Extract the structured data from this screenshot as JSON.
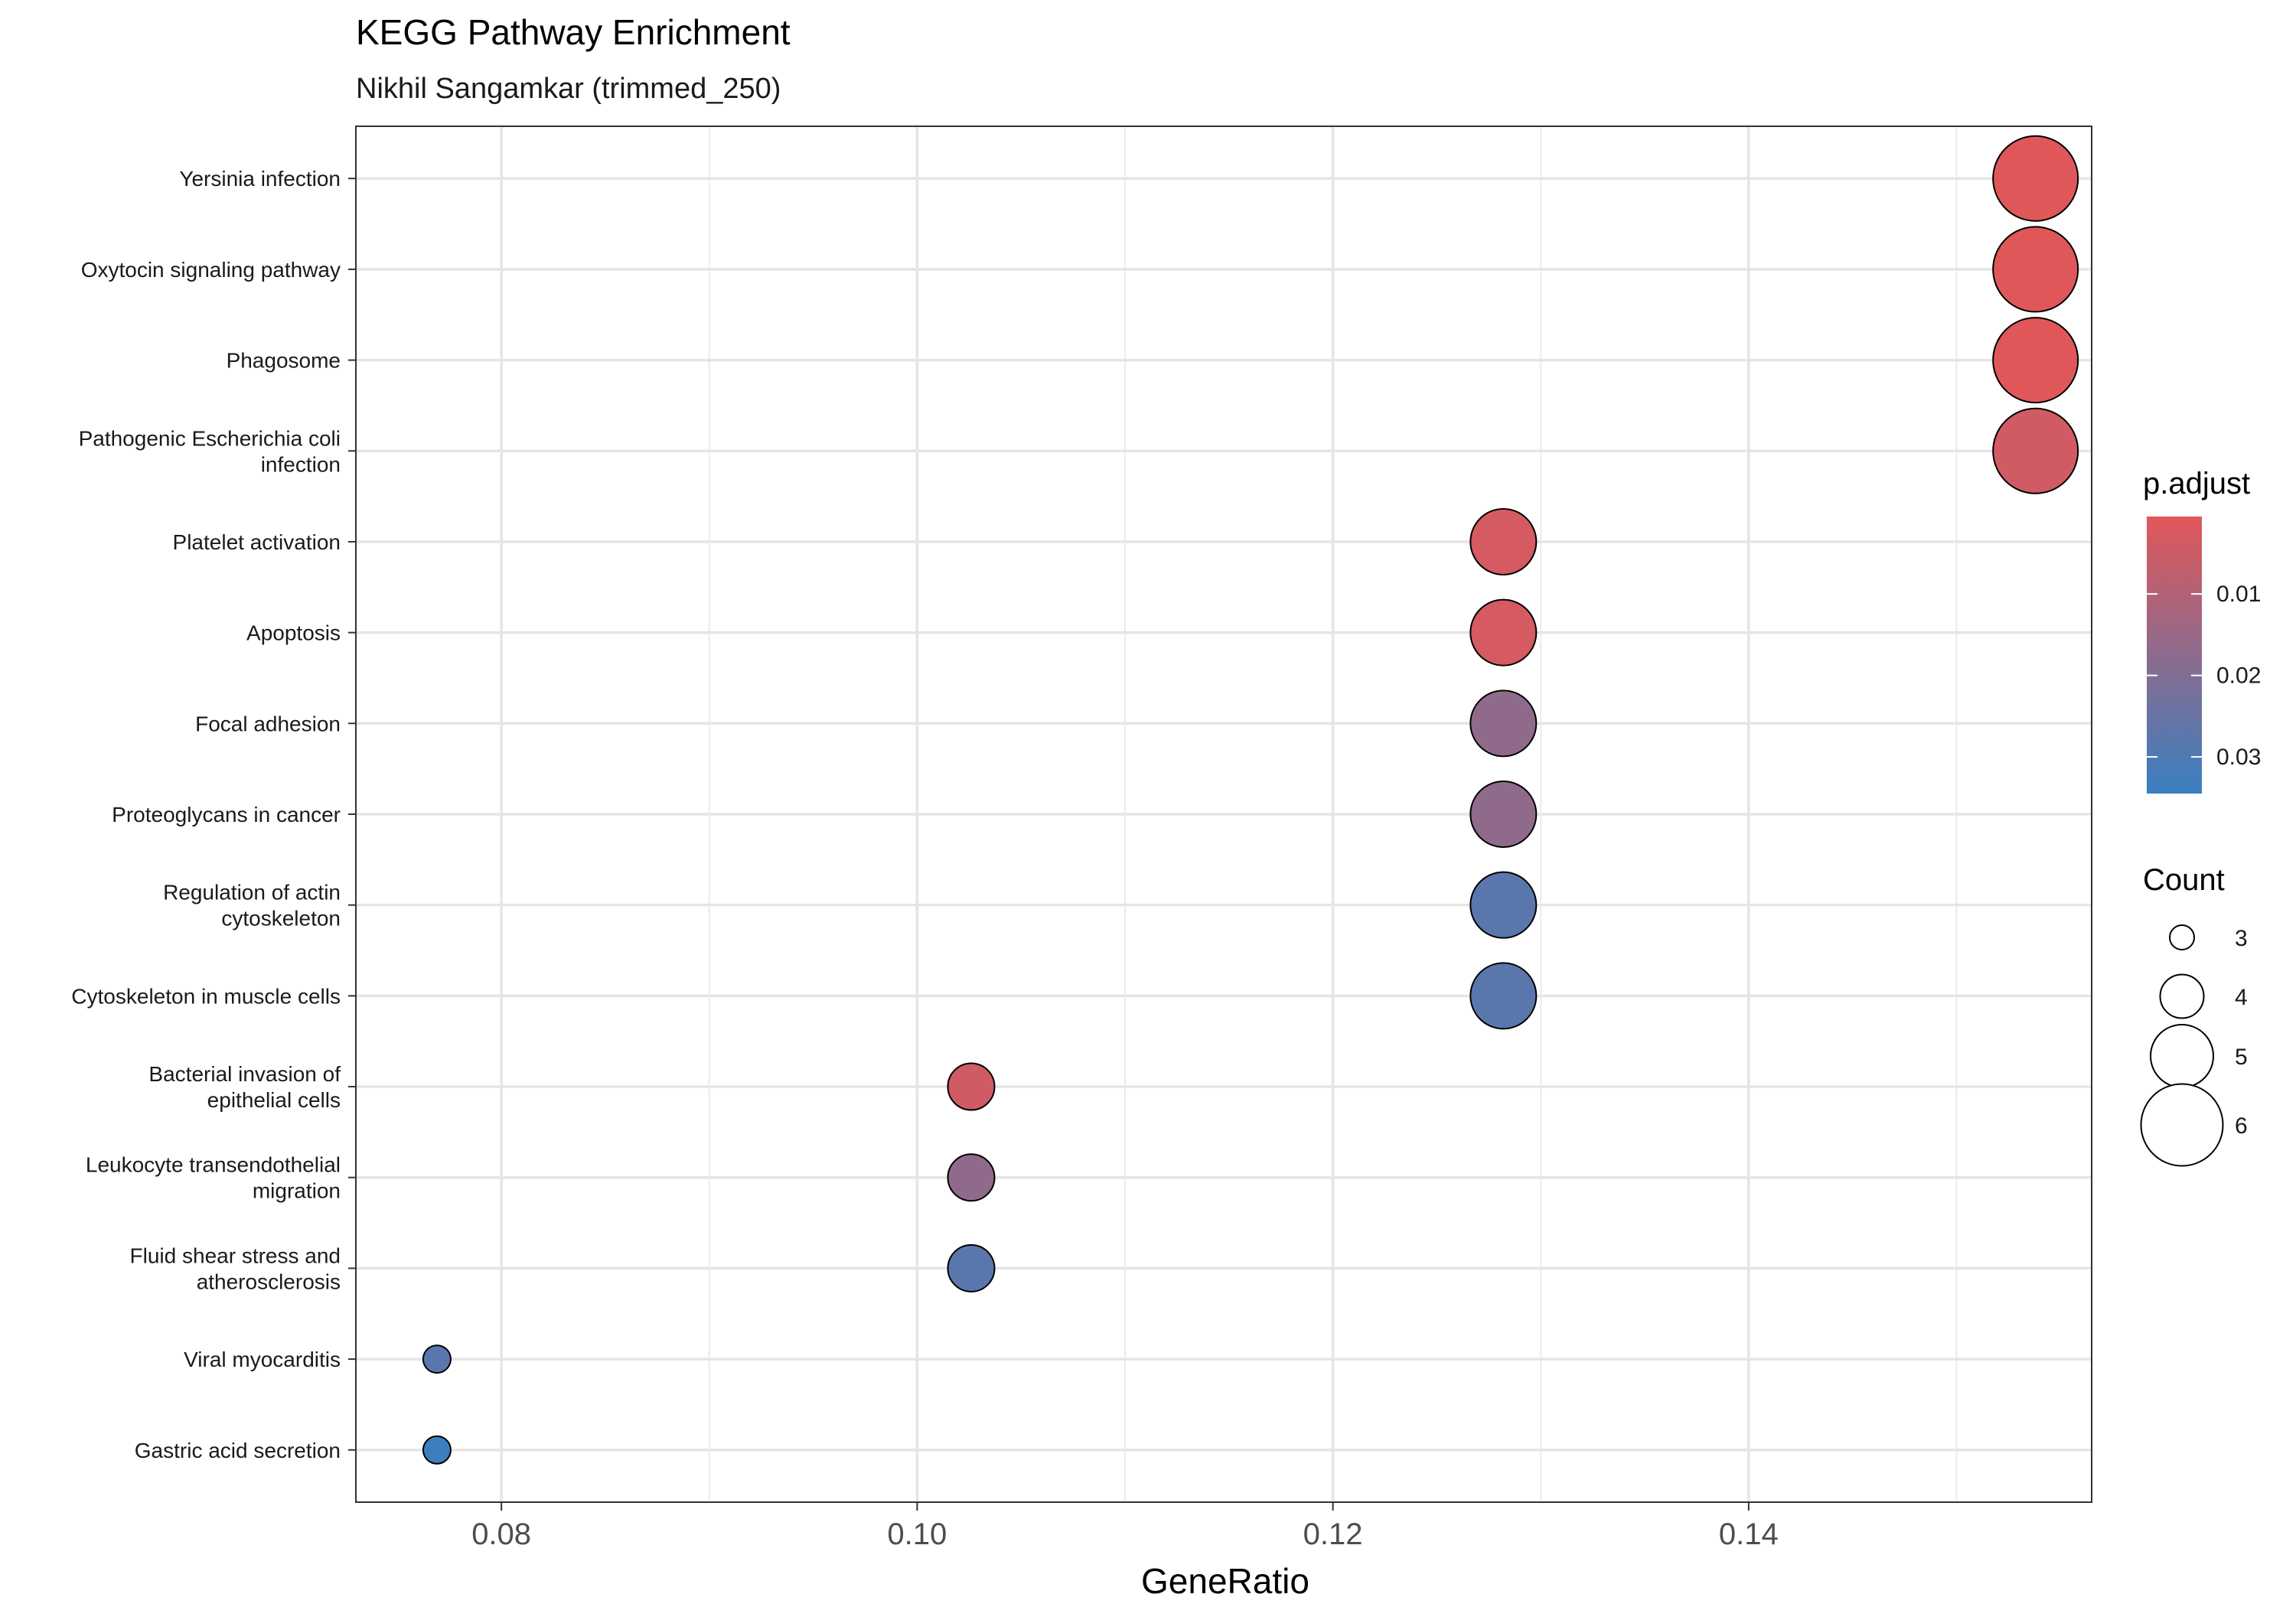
{
  "chart_data": {
    "type": "scatter",
    "title": "KEGG Pathway Enrichment",
    "subtitle": "Nikhil Sangamkar (trimmed_250)",
    "xlabel": "GeneRatio",
    "ylabel": "",
    "xlim": [
      0.073,
      0.1565
    ],
    "xticks": [
      0.08,
      0.1,
      0.12,
      0.14
    ],
    "xtick_labels": [
      "0.08",
      "0.10",
      "0.12",
      "0.14"
    ],
    "grid": true,
    "color_legend": {
      "title": "p.adjust",
      "low_color": "#e15759",
      "high_color": "#3a7fc1",
      "range": [
        0.0005,
        0.0345
      ],
      "ticks": [
        0.01,
        0.02,
        0.03
      ],
      "tick_labels": [
        "0.01",
        "0.02",
        "0.03"
      ],
      "placement": "right"
    },
    "size_legend": {
      "title": "Count",
      "values": [
        3,
        4,
        5,
        6
      ],
      "labels": [
        "3",
        "4",
        "5",
        "6"
      ],
      "placement": "right"
    },
    "points": [
      {
        "label": [
          "Yersinia infection"
        ],
        "x": 0.1538,
        "count": 6,
        "p_adjust": 0.0008
      },
      {
        "label": [
          "Oxytocin signaling pathway"
        ],
        "x": 0.1538,
        "count": 6,
        "p_adjust": 0.0008
      },
      {
        "label": [
          "Phagosome"
        ],
        "x": 0.1538,
        "count": 6,
        "p_adjust": 0.0008
      },
      {
        "label": [
          "Pathogenic Escherichia coli",
          "infection"
        ],
        "x": 0.1538,
        "count": 6,
        "p_adjust": 0.004
      },
      {
        "label": [
          "Platelet activation"
        ],
        "x": 0.1282,
        "count": 5,
        "p_adjust": 0.003
      },
      {
        "label": [
          "Apoptosis"
        ],
        "x": 0.1282,
        "count": 5,
        "p_adjust": 0.003
      },
      {
        "label": [
          "Focal adhesion"
        ],
        "x": 0.1282,
        "count": 5,
        "p_adjust": 0.017
      },
      {
        "label": [
          "Proteoglycans in cancer"
        ],
        "x": 0.1282,
        "count": 5,
        "p_adjust": 0.017
      },
      {
        "label": [
          "Regulation of actin",
          "cytoskeleton"
        ],
        "x": 0.1282,
        "count": 5,
        "p_adjust": 0.028
      },
      {
        "label": [
          "Cytoskeleton in muscle cells"
        ],
        "x": 0.1282,
        "count": 5,
        "p_adjust": 0.028
      },
      {
        "label": [
          "Bacterial invasion of",
          "epithelial cells"
        ],
        "x": 0.1026,
        "count": 4,
        "p_adjust": 0.004
      },
      {
        "label": [
          "Leukocyte transendothelial",
          "migration"
        ],
        "x": 0.1026,
        "count": 4,
        "p_adjust": 0.017
      },
      {
        "label": [
          "Fluid shear stress and",
          "atherosclerosis"
        ],
        "x": 0.1026,
        "count": 4,
        "p_adjust": 0.028
      },
      {
        "label": [
          "Viral myocarditis"
        ],
        "x": 0.0769,
        "count": 3,
        "p_adjust": 0.028
      },
      {
        "label": [
          "Gastric acid secretion"
        ],
        "x": 0.0769,
        "count": 3,
        "p_adjust": 0.034
      }
    ]
  }
}
